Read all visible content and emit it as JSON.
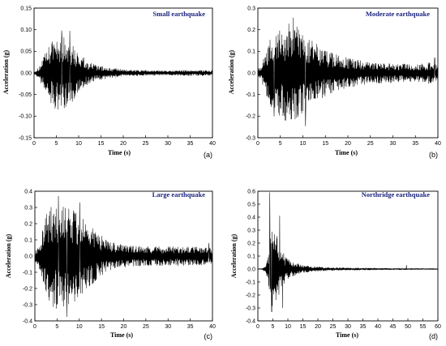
{
  "colors": {
    "title": "#1a237e",
    "trace": "#000000",
    "zero_line": "#c0392b"
  },
  "chart_data": [
    {
      "type": "line",
      "title": "Small earthquake",
      "xlabel": "Time (s)",
      "ylabel": "Acceleration (g)",
      "panel_label": "(a)",
      "xlim": [
        0,
        40
      ],
      "ylim": [
        -0.15,
        0.15
      ],
      "xticks": [
        "0",
        "5",
        "10",
        "15",
        "20",
        "25",
        "30",
        "35",
        "40"
      ],
      "yticks": [
        "0.15",
        "0.10",
        "0.05",
        "0.00",
        "-0.05",
        "-0.10",
        "-0.15"
      ],
      "envelope": {
        "t": [
          0,
          1,
          2,
          3,
          4.5,
          6,
          8,
          10,
          12,
          14,
          17,
          20,
          25,
          30,
          35,
          40
        ],
        "amp": [
          0.002,
          0.012,
          0.035,
          0.055,
          0.085,
          0.09,
          0.075,
          0.045,
          0.028,
          0.018,
          0.012,
          0.008,
          0.006,
          0.005,
          0.007,
          0.006
        ]
      },
      "peaks": [
        {
          "t": 4.7,
          "v": -0.082
        },
        {
          "t": 6.2,
          "v": 0.098
        },
        {
          "t": 8.0,
          "v": 0.097
        },
        {
          "t": 7.1,
          "v": -0.078
        }
      ]
    },
    {
      "type": "line",
      "title": "Moderate earthquake",
      "xlabel": "Time (s)",
      "ylabel": "Acceleration (g)",
      "panel_label": "(b)",
      "xlim": [
        0,
        40
      ],
      "ylim": [
        -0.3,
        0.3
      ],
      "xticks": [
        "0",
        "5",
        "10",
        "15",
        "20",
        "25",
        "30",
        "35",
        "40"
      ],
      "yticks": [
        "0.3",
        "0.2",
        "0.1",
        "0.0",
        "-0.1",
        "-0.2",
        "-0.3"
      ],
      "envelope": {
        "t": [
          0,
          1,
          2,
          3,
          4,
          6,
          8,
          10,
          12,
          14,
          16,
          18,
          20,
          25,
          30,
          35,
          38,
          40
        ],
        "amp": [
          0.02,
          0.05,
          0.12,
          0.17,
          0.2,
          0.22,
          0.24,
          0.2,
          0.15,
          0.12,
          0.1,
          0.08,
          0.07,
          0.05,
          0.045,
          0.04,
          0.05,
          0.04
        ]
      },
      "peaks": [
        {
          "t": 7.9,
          "v": 0.255
        },
        {
          "t": 10.6,
          "v": -0.245
        },
        {
          "t": 3.6,
          "v": -0.2
        },
        {
          "t": 39.3,
          "v": 0.07
        }
      ]
    },
    {
      "type": "line",
      "title": "Large earthquake",
      "xlabel": "Time (s)",
      "ylabel": "Acceleration (g)",
      "panel_label": "(c)",
      "xlim": [
        0,
        40
      ],
      "ylim": [
        -0.4,
        0.4
      ],
      "xticks": [
        "0",
        "5",
        "10",
        "15",
        "20",
        "25",
        "30",
        "35",
        "40"
      ],
      "yticks": [
        "0.4",
        "0.3",
        "0.2",
        "0.1",
        "0.0",
        "-0.1",
        "-0.2",
        "-0.3",
        "-0.4"
      ],
      "envelope": {
        "t": [
          0,
          1,
          2,
          3,
          4,
          6,
          8,
          10,
          12,
          14,
          16,
          18,
          20,
          25,
          30,
          35,
          40
        ],
        "amp": [
          0.03,
          0.08,
          0.2,
          0.3,
          0.33,
          0.32,
          0.3,
          0.26,
          0.2,
          0.15,
          0.1,
          0.08,
          0.07,
          0.06,
          0.06,
          0.06,
          0.05
        ]
      },
      "peaks": [
        {
          "t": 5.3,
          "v": 0.37
        },
        {
          "t": 7.2,
          "v": -0.375
        },
        {
          "t": 10.1,
          "v": 0.33
        },
        {
          "t": 39.2,
          "v": 0.08
        }
      ]
    },
    {
      "type": "line",
      "title": "Northridge earthquake",
      "xlabel": "Time (s)",
      "ylabel": "Acceleration (g)",
      "panel_label": "(d)",
      "xlim": [
        0,
        60
      ],
      "ylim": [
        -0.4,
        0.6
      ],
      "xticks": [
        "0",
        "5",
        "10",
        "15",
        "20",
        "25",
        "30",
        "35",
        "40",
        "45",
        "50",
        "55",
        "60"
      ],
      "yticks": [
        "0.6",
        "0.5",
        "0.4",
        "0.3",
        "0.2",
        "0.1",
        "0.0",
        "-0.1",
        "-0.2",
        "-0.3",
        "-0.4"
      ],
      "envelope": {
        "t": [
          0,
          1.5,
          2.5,
          3.5,
          4.5,
          5.5,
          6.5,
          7.5,
          9,
          11,
          14,
          18,
          25,
          35,
          45,
          60
        ],
        "amp": [
          0.002,
          0.004,
          0.03,
          0.12,
          0.3,
          0.3,
          0.25,
          0.18,
          0.1,
          0.06,
          0.035,
          0.02,
          0.012,
          0.008,
          0.006,
          0.004
        ]
      },
      "peaks": [
        {
          "t": 4.0,
          "v": 0.59
        },
        {
          "t": 4.6,
          "v": -0.33
        },
        {
          "t": 7.3,
          "v": 0.41
        },
        {
          "t": 8.2,
          "v": -0.3
        },
        {
          "t": 49.5,
          "v": 0.03
        }
      ]
    }
  ]
}
